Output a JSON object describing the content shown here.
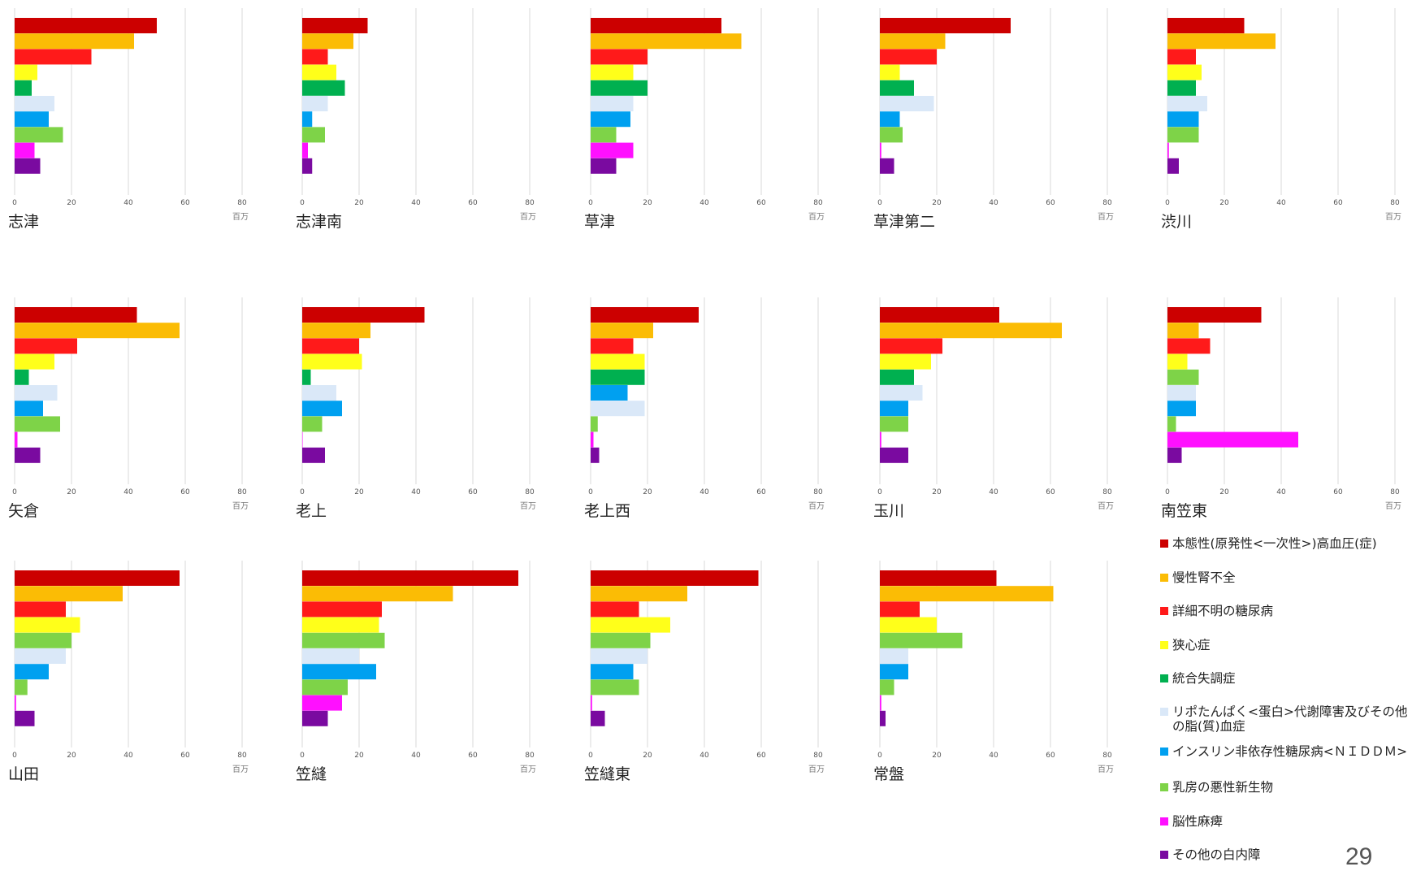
{
  "page_number": "29",
  "unit_label": "百万",
  "legend": [
    {
      "label": "本態性(原発性<一次性>)高血圧(症)",
      "color": "#cc0000"
    },
    {
      "label": "慢性腎不全",
      "color": "#fbbc05"
    },
    {
      "label": "詳細不明の糖尿病",
      "color": "#ff1a1a"
    },
    {
      "label": "狭心症",
      "color": "#ffff1a"
    },
    {
      "label": "統合失調症",
      "color": "#00b050"
    },
    {
      "label": "リポたんぱく<蛋白>代謝障害及びその他の脂(質)血症",
      "color": "#dae8f8"
    },
    {
      "label": "インスリン非依存性糖尿病<ＮＩＤＤＭ>",
      "color": "#00a0f0"
    },
    {
      "label": "乳房の悪性新生物",
      "color": "#7ed348"
    },
    {
      "label": "脳性麻痺",
      "color": "#ff10ff"
    },
    {
      "label": "その他の白内障",
      "color": "#7a0aa0"
    }
  ],
  "chart_data": [
    {
      "type": "bar",
      "orientation": "horizontal",
      "title": "志津",
      "xlabel": "百万",
      "xlim": [
        0,
        80
      ],
      "xticks": [
        "0",
        "20",
        "40",
        "60",
        "80"
      ],
      "categories": [
        "本態性(原発性<一次性>)高血圧(症)",
        "慢性腎不全",
        "詳細不明の糖尿病",
        "狭心症",
        "統合失調症",
        "リポたんぱく<蛋白>代謝障害及びその他の脂(質)血症",
        "インスリン非依存性糖尿病<ＮＩＤＤＭ>",
        "乳房の悪性新生物",
        "脳性麻痺",
        "その他の白内障"
      ],
      "values": [
        50,
        42,
        27,
        8,
        6,
        14,
        12,
        17,
        7,
        9
      ]
    },
    {
      "type": "bar",
      "orientation": "horizontal",
      "title": "志津南",
      "xlabel": "百万",
      "xlim": [
        0,
        80
      ],
      "xticks": [
        "0",
        "20",
        "40",
        "60",
        "80"
      ],
      "categories": [
        "本態性(原発性<一次性>)高血圧(症)",
        "慢性腎不全",
        "詳細不明の糖尿病",
        "狭心症",
        "統合失調症",
        "リポたんぱく<蛋白>代謝障害及びその他の脂(質)血症",
        "インスリン非依存性糖尿病<ＮＩＤＤＭ>",
        "乳房の悪性新生物",
        "脳性麻痺",
        "その他の白内障"
      ],
      "values": [
        23,
        18,
        9,
        12,
        15,
        9,
        3.5,
        8,
        2,
        3.5
      ]
    },
    {
      "type": "bar",
      "orientation": "horizontal",
      "title": "草津",
      "xlabel": "百万",
      "xlim": [
        0,
        80
      ],
      "xticks": [
        "0",
        "20",
        "40",
        "60",
        "80"
      ],
      "categories": [
        "本態性(原発性<一次性>)高血圧(症)",
        "慢性腎不全",
        "詳細不明の糖尿病",
        "狭心症",
        "統合失調症",
        "リポたんぱく<蛋白>代謝障害及びその他の脂(質)血症",
        "インスリン非依存性糖尿病<ＮＩＤＤＭ>",
        "乳房の悪性新生物",
        "脳性麻痺",
        "その他の白内障"
      ],
      "values": [
        46,
        53,
        20,
        15,
        20,
        15,
        14,
        9,
        15,
        9
      ]
    },
    {
      "type": "bar",
      "orientation": "horizontal",
      "title": "草津第二",
      "xlabel": "百万",
      "xlim": [
        0,
        80
      ],
      "xticks": [
        "0",
        "20",
        "40",
        "60",
        "80"
      ],
      "categories": [
        "本態性(原発性<一次性>)高血圧(症)",
        "慢性腎不全",
        "詳細不明の糖尿病",
        "狭心症",
        "統合失調症",
        "リポたんぱく<蛋白>代謝障害及びその他の脂(質)血症",
        "インスリン非依存性糖尿病<ＮＩＤＤＭ>",
        "乳房の悪性新生物",
        "脳性麻痺",
        "その他の白内障"
      ],
      "values": [
        46,
        23,
        20,
        7,
        12,
        19,
        7,
        8,
        0.5,
        5
      ]
    },
    {
      "type": "bar",
      "orientation": "horizontal",
      "title": "渋川",
      "xlabel": "百万",
      "xlim": [
        0,
        80
      ],
      "xticks": [
        "0",
        "20",
        "40",
        "60",
        "80"
      ],
      "categories": [
        "本態性(原発性<一次性>)高血圧(症)",
        "慢性腎不全",
        "詳細不明の糖尿病",
        "狭心症",
        "統合失調症",
        "リポたんぱく<蛋白>代謝障害及びその他の脂(質)血症",
        "インスリン非依存性糖尿病<ＮＩＤＤＭ>",
        "乳房の悪性新生物",
        "脳性麻痺",
        "その他の白内障"
      ],
      "values": [
        27,
        38,
        10,
        12,
        10,
        14,
        11,
        11,
        0.5,
        4
      ]
    },
    {
      "type": "bar",
      "orientation": "horizontal",
      "title": "矢倉",
      "xlabel": "百万",
      "xlim": [
        0,
        80
      ],
      "xticks": [
        "0",
        "20",
        "40",
        "60",
        "80"
      ],
      "categories": [
        "本態性(原発性<一次性>)高血圧(症)",
        "慢性腎不全",
        "詳細不明の糖尿病",
        "狭心症",
        "統合失調症",
        "リポたんぱく<蛋白>代謝障害及びその他の脂(質)血症",
        "インスリン非依存性糖尿病<ＮＩＤＤＭ>",
        "乳房の悪性新生物",
        "脳性麻痺",
        "その他の白内障"
      ],
      "values": [
        43,
        58,
        22,
        14,
        5,
        15,
        10,
        16,
        1,
        9
      ]
    },
    {
      "type": "bar",
      "orientation": "horizontal",
      "title": "老上",
      "xlabel": "百万",
      "xlim": [
        0,
        80
      ],
      "xticks": [
        "0",
        "20",
        "40",
        "60",
        "80"
      ],
      "categories": [
        "本態性(原発性<一次性>)高血圧(症)",
        "慢性腎不全",
        "詳細不明の糖尿病",
        "狭心症",
        "統合失調症",
        "リポたんぱく<蛋白>代謝障害及びその他の脂(質)血症",
        "インスリン非依存性糖尿病<ＮＩＤＤＭ>",
        "乳房の悪性新生物",
        "脳性麻痺",
        "その他の白内障"
      ],
      "values": [
        43,
        24,
        20,
        21,
        3,
        12,
        14,
        7,
        0,
        8
      ]
    },
    {
      "type": "bar",
      "orientation": "horizontal",
      "title": "老上西",
      "xlabel": "百万",
      "xlim": [
        0,
        80
      ],
      "xticks": [
        "0",
        "20",
        "40",
        "60",
        "80"
      ],
      "categories": [
        "本態性(原発性<一次性>)高血圧(症)",
        "慢性腎不全",
        "詳細不明の糖尿病",
        "狭心症",
        "統合失調症",
        "インスリン非依存性糖尿病<ＮＩＤＤＭ>",
        "リポたんぱく<蛋白>代謝障害及びその他の脂(質)血症",
        "乳房の悪性新生物",
        "脳性麻痺",
        "その他の白内障"
      ],
      "values": [
        38,
        22,
        15,
        19,
        19,
        13,
        19,
        2.5,
        1,
        3
      ]
    },
    {
      "type": "bar",
      "orientation": "horizontal",
      "title": "玉川",
      "xlabel": "百万",
      "xlim": [
        0,
        80
      ],
      "xticks": [
        "0",
        "20",
        "40",
        "60",
        "80"
      ],
      "categories": [
        "本態性(原発性<一次性>)高血圧(症)",
        "慢性腎不全",
        "詳細不明の糖尿病",
        "狭心症",
        "統合失調症",
        "リポたんぱく<蛋白>代謝障害及びその他の脂(質)血症",
        "インスリン非依存性糖尿病<ＮＩＤＤＭ>",
        "乳房の悪性新生物",
        "脳性麻痺",
        "その他の白内障"
      ],
      "values": [
        42,
        64,
        22,
        18,
        12,
        15,
        10,
        10,
        0.5,
        10
      ]
    },
    {
      "type": "bar",
      "orientation": "horizontal",
      "title": "南笠東",
      "xlabel": "百万",
      "xlim": [
        0,
        80
      ],
      "xticks": [
        "0",
        "20",
        "40",
        "60",
        "80"
      ],
      "categories": [
        "本態性(原発性<一次性>)高血圧(症)",
        "慢性腎不全",
        "詳細不明の糖尿病",
        "狭心症",
        "乳房の悪性新生物",
        "リポたんぱく<蛋白>代謝障害及びその他の脂(質)血症",
        "インスリン非依存性糖尿病<ＮＩＤＤＭ>",
        "乳房の悪性新生物",
        "脳性麻痺",
        "その他の白内障"
      ],
      "values": [
        33,
        11,
        15,
        7,
        11,
        10,
        10,
        3,
        46,
        5
      ]
    },
    {
      "type": "bar",
      "orientation": "horizontal",
      "title": "山田",
      "xlabel": "百万",
      "xlim": [
        0,
        80
      ],
      "xticks": [
        "0",
        "20",
        "40",
        "60",
        "80"
      ],
      "categories": [
        "本態性(原発性<一次性>)高血圧(症)",
        "慢性腎不全",
        "詳細不明の糖尿病",
        "狭心症",
        "乳房の悪性新生物",
        "リポたんぱく<蛋白>代謝障害及びその他の脂(質)血症",
        "インスリン非依存性糖尿病<ＮＩＤＤＭ>",
        "乳房の悪性新生物",
        "脳性麻痺",
        "その他の白内障"
      ],
      "values": [
        58,
        38,
        18,
        23,
        20,
        18,
        12,
        4.5,
        0.5,
        7
      ]
    },
    {
      "type": "bar",
      "orientation": "horizontal",
      "title": "笠縫",
      "xlabel": "百万",
      "xlim": [
        0,
        80
      ],
      "xticks": [
        "0",
        "20",
        "40",
        "60",
        "80"
      ],
      "categories": [
        "本態性(原発性<一次性>)高血圧(症)",
        "慢性腎不全",
        "詳細不明の糖尿病",
        "狭心症",
        "乳房の悪性新生物",
        "リポたんぱく<蛋白>代謝障害及びその他の脂(質)血症",
        "インスリン非依存性糖尿病<ＮＩＤＤＭ>",
        "乳房の悪性新生物",
        "脳性麻痺",
        "その他の白内障"
      ],
      "values": [
        76,
        53,
        28,
        27,
        29,
        20,
        26,
        16,
        14,
        9
      ]
    },
    {
      "type": "bar",
      "orientation": "horizontal",
      "title": "笠縫東",
      "xlabel": "百万",
      "xlim": [
        0,
        80
      ],
      "xticks": [
        "0",
        "20",
        "40",
        "60",
        "80"
      ],
      "categories": [
        "本態性(原発性<一次性>)高血圧(症)",
        "慢性腎不全",
        "詳細不明の糖尿病",
        "狭心症",
        "乳房の悪性新生物",
        "リポたんぱく<蛋白>代謝障害及びその他の脂(質)血症",
        "インスリン非依存性糖尿病<ＮＩＤＤＭ>",
        "乳房の悪性新生物",
        "脳性麻痺",
        "その他の白内障"
      ],
      "values": [
        59,
        34,
        17,
        28,
        21,
        20,
        15,
        17,
        0.5,
        5
      ]
    },
    {
      "type": "bar",
      "orientation": "horizontal",
      "title": "常盤",
      "xlabel": "百万",
      "xlim": [
        0,
        80
      ],
      "xticks": [
        "0",
        "20",
        "40",
        "60",
        "80"
      ],
      "categories": [
        "本態性(原発性<一次性>)高血圧(症)",
        "慢性腎不全",
        "詳細不明の糖尿病",
        "狭心症",
        "乳房の悪性新生物",
        "リポたんぱく<蛋白>代謝障害及びその他の脂(質)血症",
        "インスリン非依存性糖尿病<ＮＩＤＤＭ>",
        "乳房の悪性新生物",
        "脳性麻痺",
        "その他の白内障"
      ],
      "values": [
        41,
        61,
        14,
        20,
        29,
        10,
        10,
        5,
        0.5,
        2
      ]
    }
  ]
}
